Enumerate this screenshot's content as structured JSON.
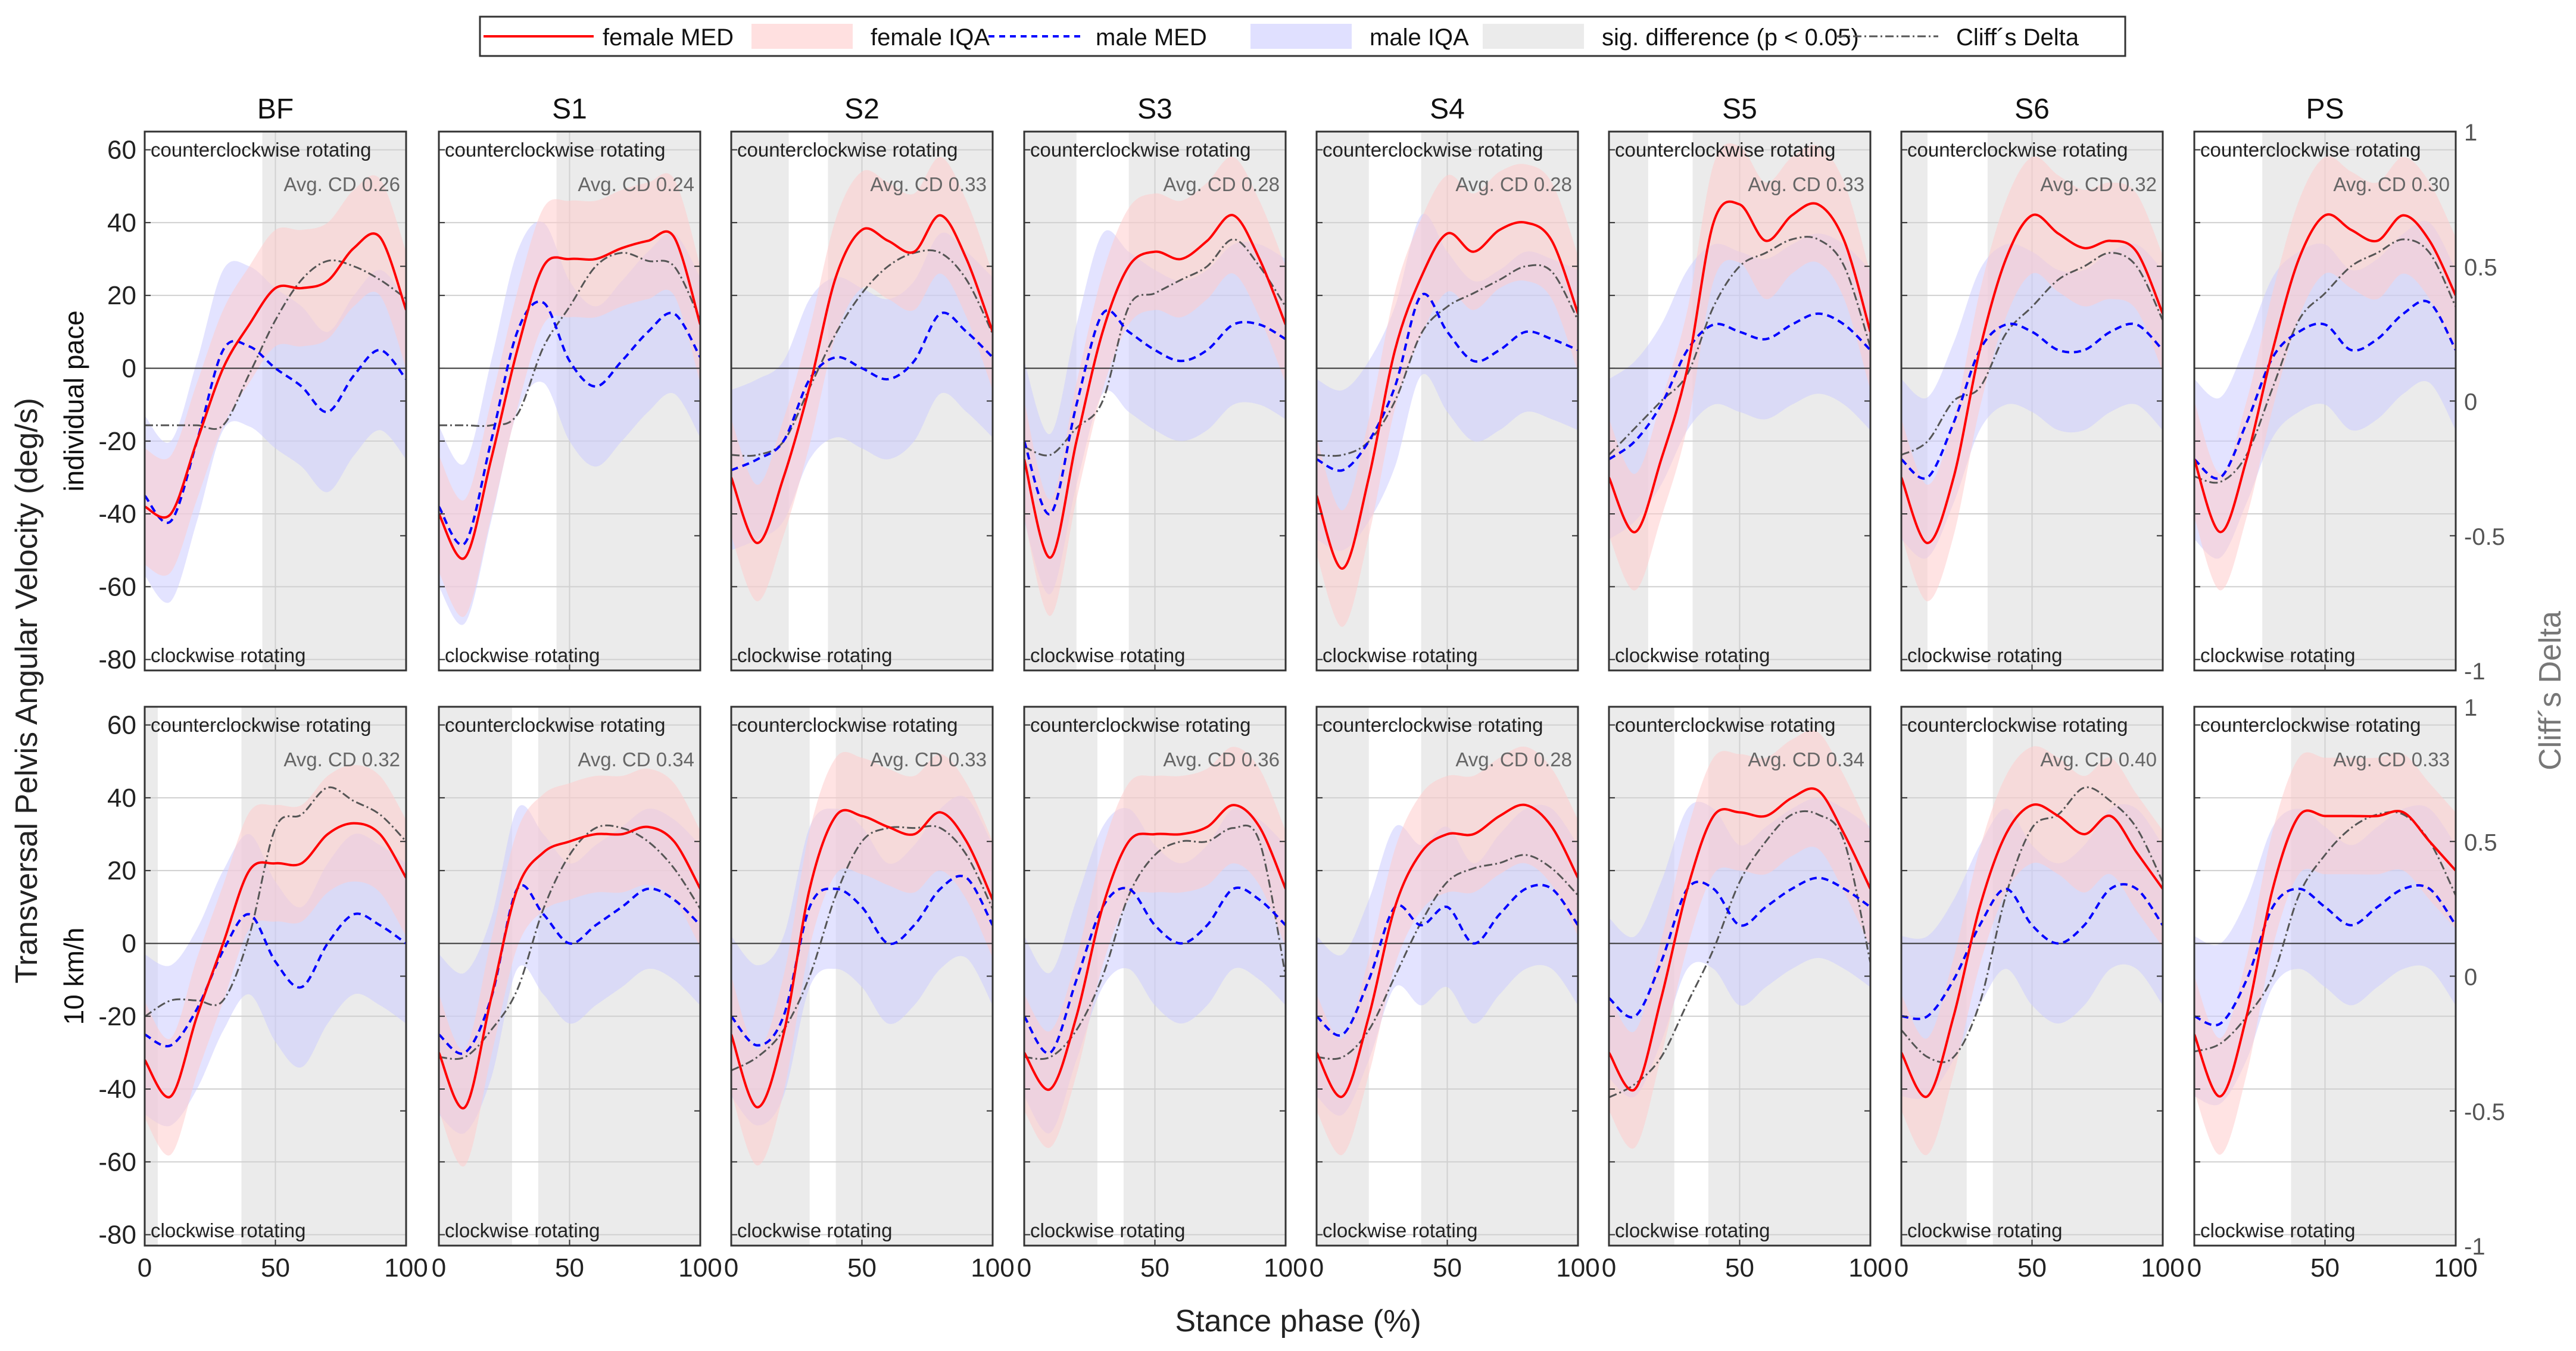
{
  "chart_data": {
    "type": "line",
    "ylabel": "Transversal Pelvis Angular Velocity (deg/s)",
    "ylabel_right": "Cliff´s Delta",
    "xlabel": "Stance phase (%)",
    "xlim": [
      0,
      100
    ],
    "ylim": [
      -83,
      65
    ],
    "ylim_right": [
      -1,
      1
    ],
    "yticks": [
      60,
      40,
      20,
      0,
      -20,
      -40,
      -60,
      -80
    ],
    "yticks_right": [
      1,
      0.5,
      0,
      -0.5,
      -1
    ],
    "xticks": [
      0,
      50,
      100
    ],
    "grid": true,
    "legend_position": "top-center",
    "legend": [
      "female MED",
      "female IQA",
      "male MED",
      "male IQA",
      "sig. difference (p < 0.05)",
      "Cliff´s Delta"
    ],
    "upper_annotation": "counterclockwise rotating",
    "lower_annotation": "clockwise rotating",
    "colors": {
      "female": "#ff0000",
      "female_band": "#ffcccc",
      "male": "#0000ff",
      "male_band": "#ccccff",
      "sig": "#ebebeb",
      "cd": "#555555"
    },
    "x": [
      0,
      10,
      20,
      30,
      40,
      50,
      60,
      70,
      80,
      90,
      100
    ],
    "female_iqr_halfwidth": 16,
    "male_iqr_halfwidth": 22,
    "columns": [
      "BF",
      "S1",
      "S2",
      "S3",
      "S4",
      "S5",
      "S6",
      "PS"
    ],
    "rows": [
      {
        "label": "individual pace",
        "panels": [
          {
            "title": "BF",
            "avg_cd": "Avg. CD 0.26",
            "sig": [
              [
                45,
                100
              ]
            ],
            "female": [
              -38,
              -40,
              -20,
              0,
              12,
              22,
              22,
              24,
              33,
              36,
              16
            ],
            "male": [
              -35,
              -42,
              -20,
              5,
              6,
              0,
              -5,
              -12,
              -2,
              5,
              -3
            ],
            "cd": [
              -0.09,
              -0.09,
              -0.09,
              -0.09,
              0.1,
              0.3,
              0.45,
              0.52,
              0.5,
              0.45,
              0.38
            ]
          },
          {
            "title": "S1",
            "avg_cd": "Avg. CD 0.24",
            "sig": [
              [
                45,
                100
              ]
            ],
            "female": [
              -40,
              -52,
              -25,
              5,
              28,
              30,
              30,
              33,
              35,
              36,
              12
            ],
            "male": [
              -38,
              -48,
              -20,
              10,
              18,
              2,
              -5,
              2,
              10,
              15,
              3
            ],
            "cd": [
              -0.09,
              -0.09,
              -0.09,
              -0.05,
              0.2,
              0.35,
              0.5,
              0.55,
              0.52,
              0.5,
              0.3
            ]
          },
          {
            "title": "S2",
            "avg_cd": "Avg. CD 0.33",
            "sig": [
              [
                0,
                22
              ],
              [
                37,
                100
              ]
            ],
            "female": [
              -30,
              -48,
              -30,
              -5,
              25,
              38,
              35,
              32,
              42,
              30,
              10
            ],
            "male": [
              -28,
              -25,
              -20,
              -3,
              3,
              0,
              -3,
              2,
              15,
              10,
              3
            ],
            "cd": [
              -0.2,
              -0.2,
              -0.15,
              0.05,
              0.25,
              0.4,
              0.5,
              0.55,
              0.55,
              0.45,
              0.25
            ]
          },
          {
            "title": "S3",
            "avg_cd": "Avg. CD 0.28",
            "sig": [
              [
                0,
                20
              ],
              [
                40,
                100
              ]
            ],
            "female": [
              -25,
              -52,
              -20,
              10,
              28,
              32,
              30,
              35,
              42,
              30,
              12
            ],
            "male": [
              -20,
              -40,
              -10,
              15,
              10,
              5,
              2,
              5,
              12,
              12,
              8
            ],
            "cd": [
              -0.17,
              -0.2,
              -0.1,
              0,
              0.35,
              0.4,
              0.45,
              0.5,
              0.6,
              0.5,
              0.35
            ]
          },
          {
            "title": "S4",
            "avg_cd": "Avg. CD 0.28",
            "sig": [
              [
                0,
                20
              ],
              [
                40,
                100
              ]
            ],
            "female": [
              -35,
              -55,
              -30,
              5,
              25,
              37,
              32,
              38,
              40,
              35,
              15
            ],
            "male": [
              -25,
              -28,
              -20,
              -5,
              20,
              10,
              2,
              5,
              10,
              8,
              5
            ],
            "cd": [
              -0.2,
              -0.2,
              -0.15,
              0,
              0.25,
              0.35,
              0.4,
              0.45,
              0.5,
              0.48,
              0.3
            ]
          },
          {
            "title": "S5",
            "avg_cd": "Avg. CD 0.33",
            "sig": [
              [
                0,
                15
              ],
              [
                32,
                100
              ]
            ],
            "female": [
              -30,
              -45,
              -25,
              0,
              40,
              45,
              35,
              42,
              45,
              35,
              10
            ],
            "male": [
              -25,
              -20,
              -10,
              5,
              12,
              10,
              8,
              12,
              15,
              12,
              5
            ],
            "cd": [
              -0.2,
              -0.1,
              0,
              0.1,
              0.35,
              0.5,
              0.55,
              0.6,
              0.6,
              0.5,
              0.2
            ]
          },
          {
            "title": "S6",
            "avg_cd": "Avg. CD 0.32",
            "sig": [
              [
                0,
                10
              ],
              [
                33,
                100
              ]
            ],
            "female": [
              -30,
              -48,
              -30,
              5,
              30,
              42,
              37,
              33,
              35,
              32,
              15
            ],
            "male": [
              -25,
              -30,
              -15,
              5,
              12,
              10,
              5,
              5,
              10,
              12,
              5
            ],
            "cd": [
              -0.2,
              -0.15,
              0,
              0.05,
              0.25,
              0.35,
              0.45,
              0.5,
              0.55,
              0.5,
              0.3
            ]
          },
          {
            "title": "PS",
            "avg_cd": "Avg. CD 0.30",
            "sig": [
              [
                26,
                100
              ]
            ],
            "female": [
              -25,
              -45,
              -25,
              5,
              30,
              42,
              38,
              35,
              42,
              35,
              20
            ],
            "male": [
              -25,
              -30,
              -15,
              3,
              10,
              12,
              5,
              8,
              15,
              18,
              5
            ],
            "cd": [
              -0.28,
              -0.3,
              -0.2,
              0.05,
              0.3,
              0.4,
              0.5,
              0.55,
              0.6,
              0.55,
              0.35
            ]
          }
        ]
      },
      {
        "label": "10  km/h",
        "panels": [
          {
            "title": "BF",
            "avg_cd": "Avg. CD 0.32",
            "sig": [
              [
                0,
                5
              ],
              [
                37,
                100
              ]
            ],
            "female": [
              -32,
              -42,
              -20,
              0,
              20,
              22,
              22,
              30,
              33,
              30,
              18
            ],
            "male": [
              -25,
              -28,
              -18,
              -2,
              8,
              -5,
              -12,
              0,
              8,
              5,
              0
            ],
            "cd": [
              -0.15,
              -0.09,
              -0.09,
              -0.09,
              0.15,
              0.55,
              0.6,
              0.7,
              0.65,
              0.6,
              0.5
            ]
          },
          {
            "title": "S1",
            "avg_cd": "Avg. CD 0.34",
            "sig": [
              [
                0,
                28
              ],
              [
                38,
                100
              ]
            ],
            "female": [
              -30,
              -45,
              -15,
              15,
              25,
              28,
              30,
              30,
              32,
              28,
              15
            ],
            "male": [
              -25,
              -30,
              -15,
              15,
              8,
              0,
              5,
              10,
              15,
              12,
              5
            ],
            "cd": [
              -0.3,
              -0.3,
              -0.2,
              -0.05,
              0.25,
              0.45,
              0.55,
              0.55,
              0.5,
              0.4,
              0.25
            ]
          },
          {
            "title": "S2",
            "avg_cd": "Avg. CD 0.33",
            "sig": [
              [
                0,
                30
              ],
              [
                40,
                100
              ]
            ],
            "female": [
              -25,
              -45,
              -25,
              15,
              35,
              35,
              32,
              30,
              36,
              28,
              12
            ],
            "male": [
              -20,
              -28,
              -20,
              10,
              15,
              10,
              0,
              5,
              15,
              18,
              5
            ],
            "cd": [
              -0.35,
              -0.3,
              -0.2,
              0,
              0.3,
              0.5,
              0.55,
              0.55,
              0.55,
              0.45,
              0.25
            ]
          },
          {
            "title": "S3",
            "avg_cd": "Avg. CD 0.36",
            "sig": [
              [
                0,
                28
              ],
              [
                38,
                100
              ]
            ],
            "female": [
              -30,
              -40,
              -20,
              10,
              28,
              30,
              30,
              32,
              38,
              32,
              15
            ],
            "male": [
              -20,
              -30,
              -10,
              10,
              15,
              5,
              0,
              5,
              15,
              12,
              5
            ],
            "cd": [
              -0.3,
              -0.3,
              -0.2,
              0,
              0.3,
              0.45,
              0.5,
              0.5,
              0.55,
              0.5,
              0
            ]
          },
          {
            "title": "S4",
            "avg_cd": "Avg. CD 0.28",
            "sig": [
              [
                0,
                20
              ],
              [
                40,
                100
              ]
            ],
            "female": [
              -30,
              -42,
              -20,
              10,
              25,
              30,
              30,
              35,
              38,
              32,
              18
            ],
            "male": [
              -20,
              -25,
              -10,
              10,
              5,
              10,
              0,
              8,
              15,
              15,
              5
            ],
            "cd": [
              -0.3,
              -0.3,
              -0.2,
              0,
              0.2,
              0.35,
              0.4,
              0.42,
              0.45,
              0.4,
              0.3
            ]
          },
          {
            "title": "S5",
            "avg_cd": "Avg. CD 0.34",
            "sig": [
              [
                0,
                25
              ],
              [
                38,
                100
              ]
            ],
            "female": [
              -30,
              -40,
              -15,
              15,
              35,
              36,
              35,
              40,
              42,
              30,
              15
            ],
            "male": [
              -15,
              -20,
              -5,
              15,
              15,
              5,
              10,
              15,
              18,
              15,
              10
            ],
            "cd": [
              -0.45,
              -0.4,
              -0.3,
              -0.1,
              0.1,
              0.35,
              0.5,
              0.6,
              0.6,
              0.5,
              0.05
            ]
          },
          {
            "title": "S6",
            "avg_cd": "Avg. CD 0.40",
            "sig": [
              [
                0,
                25
              ],
              [
                35,
                100
              ]
            ],
            "female": [
              -30,
              -42,
              -20,
              10,
              30,
              38,
              35,
              30,
              35,
              25,
              15
            ],
            "male": [
              -20,
              -20,
              -10,
              5,
              15,
              5,
              0,
              5,
              15,
              15,
              5
            ],
            "cd": [
              -0.2,
              -0.3,
              -0.3,
              -0.1,
              0.3,
              0.55,
              0.6,
              0.7,
              0.65,
              0.55,
              0.35
            ]
          },
          {
            "title": "PS",
            "avg_cd": "Avg. CD 0.33",
            "sig": [
              [
                37,
                100
              ]
            ],
            "female": [
              -25,
              -42,
              -20,
              15,
              35,
              35,
              35,
              35,
              36,
              28,
              20
            ],
            "male": [
              -20,
              -22,
              -10,
              10,
              15,
              10,
              5,
              10,
              15,
              15,
              5
            ],
            "cd": [
              -0.28,
              -0.25,
              -0.15,
              0,
              0.3,
              0.45,
              0.55,
              0.6,
              0.6,
              0.5,
              0.3
            ]
          }
        ]
      }
    ]
  }
}
